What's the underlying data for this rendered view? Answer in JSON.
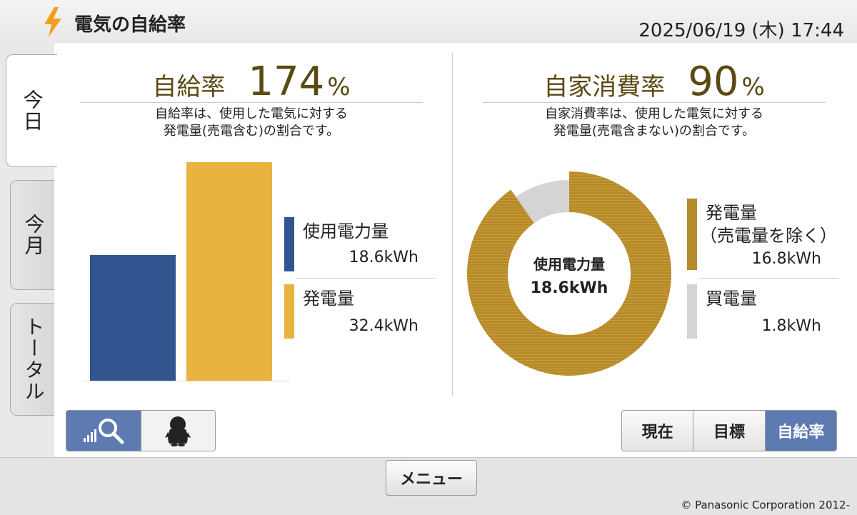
{
  "header": {
    "title": "電気の自給率",
    "datetime": "2025/06/19 (木) 17:44"
  },
  "tabs": [
    {
      "label": "今日",
      "active": true
    },
    {
      "label": "今月",
      "active": false
    },
    {
      "label": "トータル",
      "active": false
    }
  ],
  "self_sufficiency": {
    "label": "自給率",
    "value": "174",
    "unit": "%",
    "desc_line1": "自給率は、使用した電気に対する",
    "desc_line2": "発電量(売電含む)の割合です。",
    "usage": {
      "label": "使用電力量",
      "value": "18.6kWh",
      "amount": 18.6,
      "color": "#33558f"
    },
    "generation": {
      "label": "発電量",
      "value": "32.4kWh",
      "amount": 32.4,
      "color": "#e8b33e"
    }
  },
  "self_consumption": {
    "label": "自家消費率",
    "value": "90",
    "unit": "%",
    "desc_line1": "自家消費率は、使用した電気に対する",
    "desc_line2": "発電量(売電含まない)の割合です。",
    "center_line1": "使用電力量",
    "center_line2": "18.6kWh",
    "generation": {
      "label": "発電量",
      "sublabel": "（売電量を除く）",
      "value": "16.8kWh",
      "amount": 16.8,
      "color": "#b48a2a"
    },
    "purchase": {
      "label": "買電量",
      "value": "1.8kWh",
      "amount": 1.8,
      "color": "#d4d4d4"
    }
  },
  "view_toggle": [
    {
      "icon": "bar-magnifier-icon",
      "active": true
    },
    {
      "icon": "penguin-icon",
      "active": false
    }
  ],
  "mode_buttons": [
    {
      "label": "現在",
      "active": false
    },
    {
      "label": "目標",
      "active": false
    },
    {
      "label": "自給率",
      "active": true
    }
  ],
  "footer": {
    "menu_label": "メニュー",
    "copyright": "© Panasonic Corporation 2012-"
  }
}
